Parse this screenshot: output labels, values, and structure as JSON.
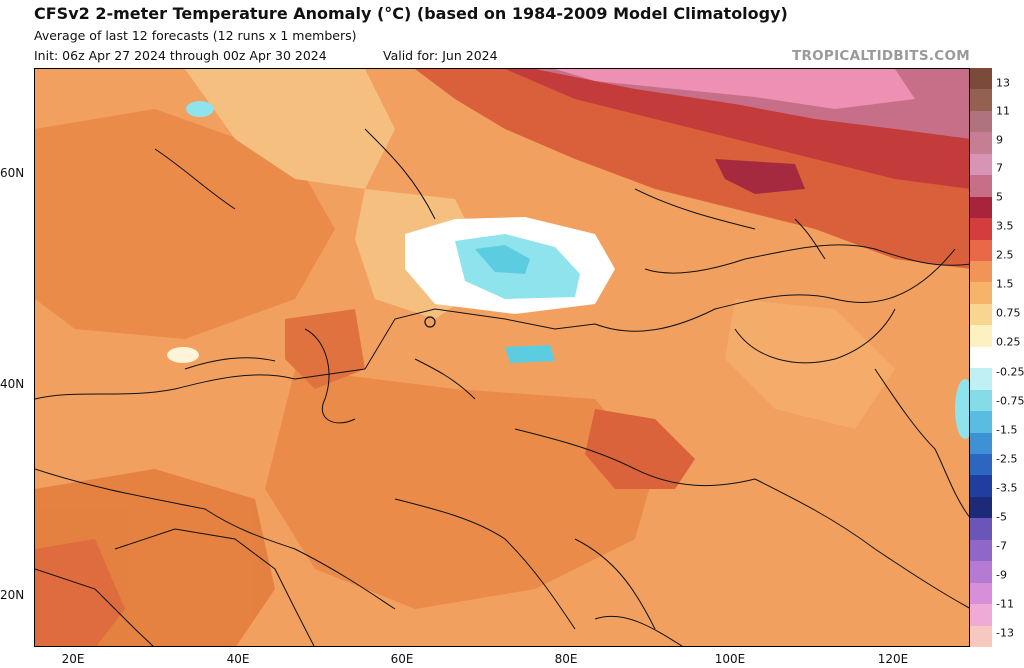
{
  "header": {
    "title": "CFSv2 2-meter Temperature Anomaly (°C) (based on 1984-2009 Model Climatology)",
    "subtitle": "Average of last 12 forecasts (12 runs x 1 members)",
    "init": "Init: 06z Apr 27 2024 through 00z Apr 30 2024",
    "valid": "Valid for: Jun 2024",
    "brand": "TROPICALTIDBITS.COM"
  },
  "map": {
    "lat_labels": [
      "60N",
      "40N",
      "20N"
    ],
    "lon_labels": [
      "20E",
      "40E",
      "60E",
      "80E",
      "100E",
      "120E"
    ],
    "colors": {
      "base": "#f2a060",
      "warm_light": "#f6c182",
      "warm_medium": "#ea8a48",
      "warm_strong": "#d9603a",
      "hot": "#c43b3b",
      "very_hot": "#a52a40",
      "extreme": "#d46a8a",
      "extreme_pink": "#ee90b4",
      "neutral": "#ffffff",
      "cool": "#8fe3ec",
      "cold": "#5ccde0"
    }
  },
  "colorbar": {
    "labels": [
      "13",
      "11",
      "9",
      "7",
      "5",
      "3.5",
      "2.5",
      "1.5",
      "0.75",
      "0.25",
      "-0.25",
      "-0.75",
      "-1.5",
      "-2.5",
      "-3.5",
      "-5",
      "-7",
      "-9",
      "-11",
      "-13"
    ],
    "swatches": [
      "#7b4a3a",
      "#946052",
      "#b0727c",
      "#c57e94",
      "#d894b4",
      "#c76f88",
      "#a8243c",
      "#d33d3d",
      "#e86848",
      "#f19458",
      "#f5b46a",
      "#f8d590",
      "#fdf1c2",
      "#ffffff",
      "#c0f0f4",
      "#86dbe8",
      "#58bde0",
      "#3c92d4",
      "#2c66c0",
      "#1f3ea0",
      "#1c2a78",
      "#6a56b8",
      "#9066c8",
      "#b47ad4",
      "#d68fd8",
      "#f0aad8",
      "#f8c8c0"
    ]
  }
}
